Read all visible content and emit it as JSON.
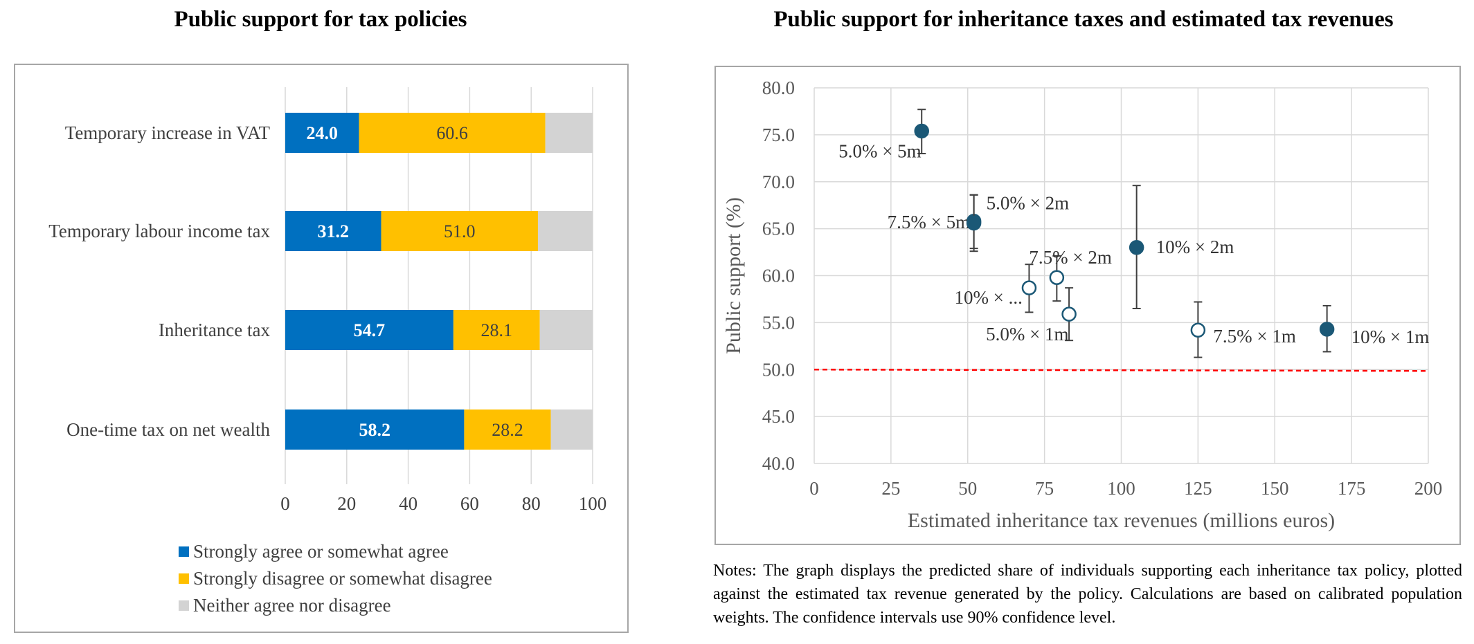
{
  "chart_data": [
    {
      "type": "bar",
      "stacked": true,
      "orientation": "horizontal",
      "title": "Public support for tax policies",
      "categories": [
        "Temporary increase in VAT",
        "Temporary labour income tax",
        "Inheritance tax",
        "One-time tax on net wealth"
      ],
      "series": [
        {
          "name": "Strongly agree or somewhat agree",
          "values": [
            24.0,
            31.2,
            54.7,
            58.2
          ],
          "labels": [
            "24.0",
            "31.2",
            "54.7",
            "58.2"
          ],
          "color": "#0070c0"
        },
        {
          "name": "Strongly disagree or somewhat disagree",
          "values": [
            60.6,
            51.0,
            28.1,
            28.2
          ],
          "labels": [
            "60.6",
            "51.0",
            "28.1",
            "28.2"
          ],
          "color": "#ffc000"
        },
        {
          "name": "Neither agree nor disagree",
          "values": [
            15.4,
            17.8,
            17.2,
            13.6
          ],
          "color": "#d3d3d3"
        }
      ],
      "xlim": [
        0,
        100
      ],
      "xticks": [
        "0",
        "20",
        "40",
        "60",
        "80",
        "100"
      ],
      "legend_position": "bottom"
    },
    {
      "type": "scatter",
      "title": "Public support for inheritance taxes and estimated tax revenues",
      "xlabel": "Estimated inheritance tax revenues (millions euros)",
      "ylabel": "Public support (%)",
      "xlim": [
        0,
        200
      ],
      "ylim": [
        40,
        80
      ],
      "xticks": [
        "0",
        "25",
        "50",
        "75",
        "100",
        "125",
        "150",
        "175",
        "200"
      ],
      "yticks": [
        "40.0",
        "45.0",
        "50.0",
        "55.0",
        "60.0",
        "65.0",
        "70.0",
        "75.0",
        "80.0"
      ],
      "grid": true,
      "reference_line": {
        "y": 50,
        "style": "dashed",
        "color": "#ff0000"
      },
      "points": [
        {
          "label": "5.0% × 5m",
          "x": 35,
          "y": 75.4,
          "ci": [
            73.0,
            77.7
          ],
          "filled": true
        },
        {
          "label": "7.5% × 5m",
          "x": 52,
          "y": 65.8,
          "ci": [
            62.9,
            68.6
          ],
          "filled": true
        },
        {
          "label": "5.0% × 2m",
          "x": 52,
          "y": 65.6,
          "ci": [
            62.6,
            68.6
          ],
          "filled": true
        },
        {
          "label": "10% × 2m",
          "x": 105,
          "y": 63.0,
          "ci": [
            56.5,
            69.6
          ],
          "filled": true
        },
        {
          "label": "10% × 1m",
          "x": 167,
          "y": 54.3,
          "ci": [
            51.9,
            56.8
          ],
          "filled": true
        },
        {
          "label": "10% × ...",
          "x": 70,
          "y": 58.7,
          "ci": [
            56.1,
            61.2
          ],
          "filled": false
        },
        {
          "label": "7.5% × 2m",
          "x": 79,
          "y": 59.8,
          "ci": [
            57.3,
            62.1
          ],
          "filled": false
        },
        {
          "label": "5.0% × 1m",
          "x": 83,
          "y": 55.9,
          "ci": [
            53.1,
            58.7
          ],
          "filled": false
        },
        {
          "label": "7.5% × 1m",
          "x": 125,
          "y": 54.2,
          "ci": [
            51.3,
            57.2
          ],
          "filled": false
        }
      ],
      "marker_color": "#1b5876"
    }
  ],
  "notes": "Notes: The graph displays the predicted share of individuals supporting each inheritance tax policy, plotted against the estimated tax revenue generated by the policy. Calculations are based on calibrated population weights. The confidence intervals use 90% confidence level."
}
